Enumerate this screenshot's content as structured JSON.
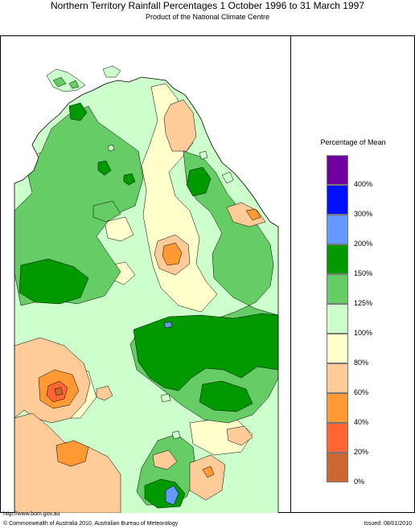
{
  "title": "Northern Territory Rainfall Percentages 1 October 1996 to 31 March 1997",
  "subtitle": "Product of the National Climate Centre",
  "legend": {
    "title": "Percentage of Mean",
    "bins": [
      {
        "label": "400%",
        "color": "#7000a0"
      },
      {
        "label": "300%",
        "color": "#0010ff"
      },
      {
        "label": "200%",
        "color": "#6699ff"
      },
      {
        "label": "150%",
        "color": "#009a00"
      },
      {
        "label": "125%",
        "color": "#66cc66"
      },
      {
        "label": "100%",
        "color": "#ccffcc"
      },
      {
        "label": "80%",
        "color": "#ffffcc"
      },
      {
        "label": "60%",
        "color": "#ffcc99"
      },
      {
        "label": "40%",
        "color": "#ff9933"
      },
      {
        "label": "20%",
        "color": "#ff6633"
      },
      {
        "label": "0%",
        "color": "#cc6633"
      }
    ]
  },
  "footer": {
    "url": "http://www.bom.gov.au",
    "copyright": "© Commonwealth of Australia 2010, Australian Bureau of Meteorology",
    "issued": "Issued: 08/01/2010"
  }
}
